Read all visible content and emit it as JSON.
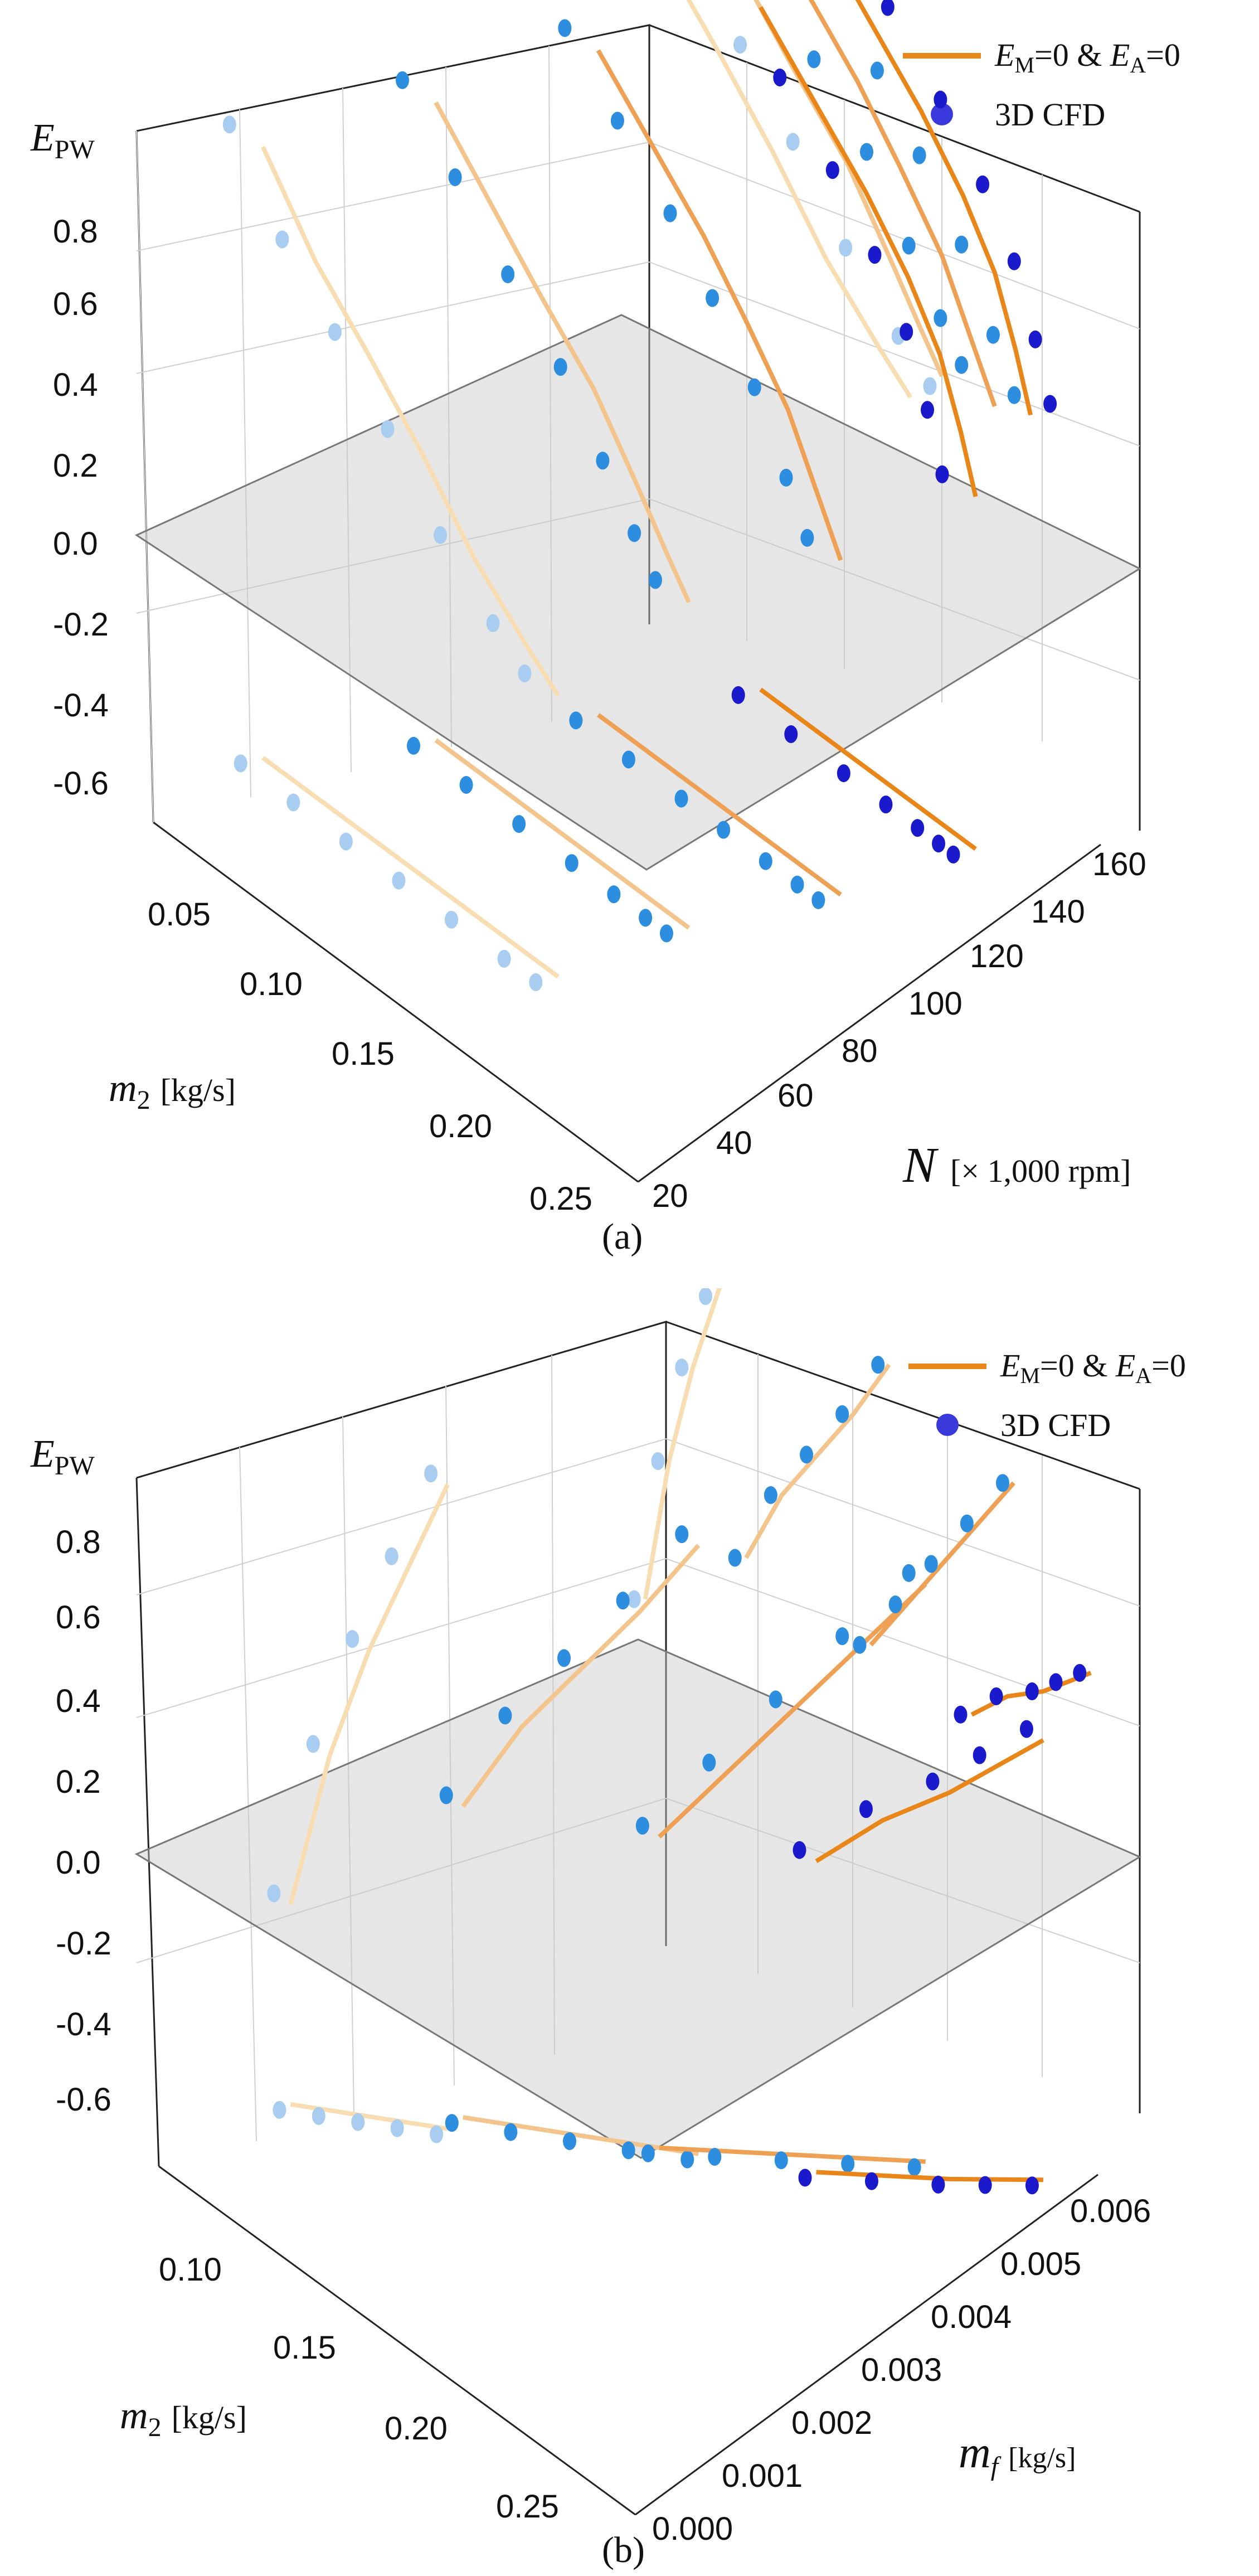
{
  "colors": {
    "line_dark": "#e8861a",
    "line_mid": "#eea055",
    "line_light": "#f3c48c",
    "line_pale": "#f8ddb2",
    "dot_dark": "#1a1acc",
    "dot_mid": "#2d8ee0",
    "dot_light": "#a8cdf0",
    "legend_dot": "#3a3adc"
  },
  "chart_data": [
    {
      "panel": "a",
      "type": "scatter",
      "caption": "(a)",
      "zlabel_main": "E",
      "zlabel_sub": "PW",
      "xlabel_main": "m",
      "xlabel_sub": "2",
      "xlabel_unit": "[kg/s]",
      "ylabel_main": "N",
      "ylabel_unit": "[× 1,000 rpm]",
      "legend": {
        "line_main": "E",
        "line_sub1": "M",
        "line_mid": "=0 & ",
        "line_main2": "E",
        "line_sub2": "A",
        "line_end": "=0",
        "dots": "3D CFD"
      },
      "ztick_labels": [
        "0.8",
        "0.6",
        "0.4",
        "0.2",
        "0.0",
        "-0.2",
        "-0.4",
        "-0.6"
      ],
      "xtick_labels": [
        "0.05",
        "0.10",
        "0.15",
        "0.20",
        "0.25"
      ],
      "ytick_labels": [
        "20",
        "40",
        "60",
        "80",
        "100",
        "120",
        "140",
        "160"
      ],
      "xlim": [
        0.03,
        0.26
      ],
      "ylim": [
        20,
        160
      ],
      "zlim": [
        -0.75,
        0.8
      ],
      "series": [
        {
          "speed": 50,
          "m2": [
            0.035,
            0.06,
            0.085,
            0.11,
            0.135,
            0.16,
            0.175
          ],
          "epw": [
            0.62,
            0.45,
            0.33,
            0.2,
            0.05,
            -0.06,
            -0.12
          ],
          "cfd": true
        },
        {
          "speed": 80,
          "m2": [
            0.07,
            0.095,
            0.12,
            0.145,
            0.165,
            0.18,
            0.19
          ],
          "epw": [
            0.68,
            0.55,
            0.42,
            0.3,
            0.16,
            0.05,
            -0.02
          ],
          "cfd": true
        },
        {
          "speed": 110,
          "m2": [
            0.1,
            0.125,
            0.15,
            0.17,
            0.19,
            0.205,
            0.215
          ],
          "epw": [
            0.74,
            0.62,
            0.5,
            0.38,
            0.25,
            0.1,
            0.0
          ],
          "cfd": true
        },
        {
          "speed": 140,
          "m2": [
            0.13,
            0.155,
            0.18,
            0.2,
            0.215,
            0.225,
            0.232
          ],
          "epw": [
            0.78,
            0.66,
            0.54,
            0.42,
            0.3,
            0.16,
            0.04
          ],
          "cfd": true
        }
      ]
    },
    {
      "panel": "b",
      "type": "scatter",
      "caption": "(b)",
      "zlabel_main": "E",
      "zlabel_sub": "PW",
      "xlabel_main": "m",
      "xlabel_sub": "2",
      "xlabel_unit": "[kg/s]",
      "ylabel_main": "m",
      "ylabel_sub": "f",
      "ylabel_unit": "[kg/s]",
      "legend": {
        "line_main": "E",
        "line_sub1": "M",
        "line_mid": "=0 & ",
        "line_main2": "E",
        "line_sub2": "A",
        "line_end": "=0",
        "dots": "3D CFD"
      },
      "ztick_labels": [
        "0.8",
        "0.6",
        "0.4",
        "0.2",
        "0.0",
        "-0.2",
        "-0.4",
        "-0.6"
      ],
      "xtick_labels": [
        "0.10",
        "0.15",
        "0.20",
        "0.25"
      ],
      "ytick_labels": [
        "0.000",
        "0.001",
        "0.002",
        "0.003",
        "0.004",
        "0.005",
        "0.006"
      ],
      "xlim": [
        0.08,
        0.28
      ],
      "ylim": [
        0.0,
        0.006
      ],
      "zlim": [
        -0.75,
        0.8
      ],
      "series": [
        {
          "speed": 60,
          "m2": [
            0.09,
            0.1,
            0.11,
            0.12,
            0.13
          ],
          "mf": [
            0.0014,
            0.0016,
            0.0018,
            0.002,
            0.0022
          ],
          "epw": [
            -0.3,
            0.05,
            0.3,
            0.5,
            0.7
          ],
          "cfd": true
        },
        {
          "speed": 90,
          "m2": [
            0.13,
            0.145,
            0.16,
            0.175,
            0.19
          ],
          "mf": [
            0.0024,
            0.0027,
            0.003,
            0.0033,
            0.0036
          ],
          "epw": [
            -0.05,
            0.15,
            0.3,
            0.45,
            0.62
          ],
          "cfd": true
        },
        {
          "speed": 120,
          "m2": [
            0.18,
            0.195,
            0.21,
            0.225,
            0.24
          ],
          "mf": [
            0.0034,
            0.0038,
            0.0042,
            0.0046,
            0.005
          ],
          "epw": [
            -0.05,
            0.1,
            0.25,
            0.4,
            0.55
          ],
          "cfd": true
        },
        {
          "speed": 150,
          "m2": [
            0.22,
            0.235,
            0.25,
            0.26,
            0.27
          ],
          "mf": [
            0.0042,
            0.0046,
            0.005,
            0.0053,
            0.0056
          ],
          "epw": [
            -0.05,
            0.05,
            0.12,
            0.18,
            0.24
          ],
          "cfd": true
        }
      ]
    }
  ]
}
